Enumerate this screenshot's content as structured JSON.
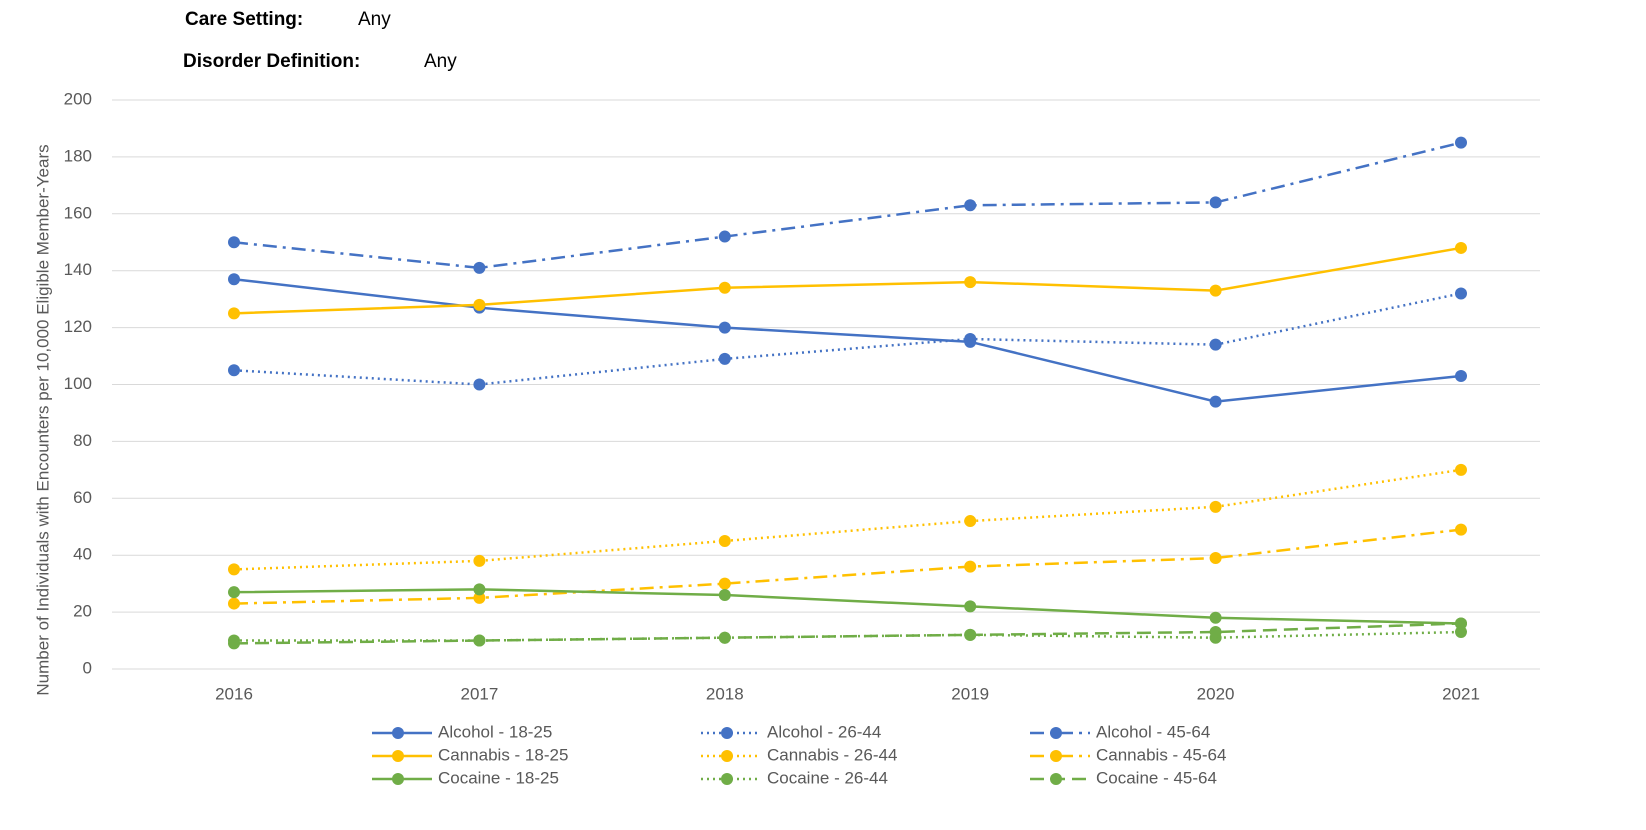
{
  "filters": [
    {
      "label": "Care Setting:",
      "value": "Any"
    },
    {
      "label": "Disorder Definition:",
      "value": "Any"
    }
  ],
  "chart_data": {
    "type": "line",
    "y_axis_label": "Number of Individuals with Encounters per 10,000 Eligible Member-Years",
    "categories": [
      "2016",
      "2017",
      "2018",
      "2019",
      "2020",
      "2021"
    ],
    "ylim": [
      0,
      200
    ],
    "yticks": [
      0,
      20,
      40,
      60,
      80,
      100,
      120,
      140,
      160,
      180,
      200
    ],
    "grid": true,
    "series": [
      {
        "name": "Alcohol - 18-25",
        "color": "#4472c4",
        "dash": "solid",
        "values": [
          137,
          127,
          120,
          115,
          94,
          103
        ]
      },
      {
        "name": "Alcohol - 26-44",
        "color": "#4472c4",
        "dash": "dotted",
        "values": [
          105,
          100,
          109,
          116,
          114,
          132
        ]
      },
      {
        "name": "Alcohol - 45-64",
        "color": "#4472c4",
        "dash": "dashdot",
        "values": [
          150,
          141,
          152,
          163,
          164,
          185
        ]
      },
      {
        "name": "Cannabis - 18-25",
        "color": "#ffc000",
        "dash": "solid",
        "values": [
          125,
          128,
          134,
          136,
          133,
          148
        ]
      },
      {
        "name": "Cannabis - 26-44",
        "color": "#ffc000",
        "dash": "dotted",
        "values": [
          35,
          38,
          45,
          52,
          57,
          70
        ]
      },
      {
        "name": "Cannabis - 45-64",
        "color": "#ffc000",
        "dash": "dashdot",
        "values": [
          23,
          25,
          30,
          36,
          39,
          49
        ]
      },
      {
        "name": "Cocaine - 18-25",
        "color": "#70ad47",
        "dash": "solid",
        "values": [
          27,
          28,
          26,
          22,
          18,
          16
        ]
      },
      {
        "name": "Cocaine - 26-44",
        "color": "#70ad47",
        "dash": "dotted",
        "values": [
          10,
          10,
          11,
          12,
          11,
          13
        ]
      },
      {
        "name": "Cocaine - 45-64",
        "color": "#70ad47",
        "dash": "dashed",
        "values": [
          9,
          10,
          11,
          12,
          13,
          16
        ]
      }
    ]
  }
}
